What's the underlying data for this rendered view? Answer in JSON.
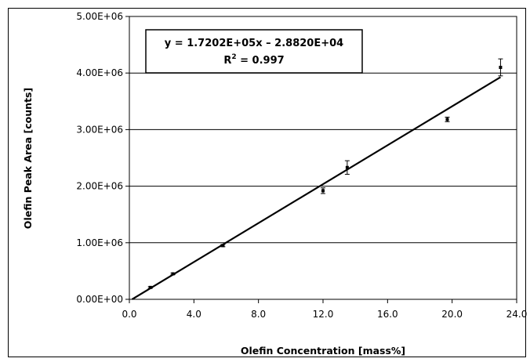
{
  "chart_data": {
    "type": "scatter",
    "xlabel": "Olefin Concentration [mass%]",
    "ylabel": "Olefin Peak Area [counts]",
    "xlim": [
      0,
      24
    ],
    "ylim": [
      0,
      5000000
    ],
    "x_ticks": [
      "0.0",
      "4.0",
      "8.0",
      "12.0",
      "16.0",
      "20.0",
      "24.0"
    ],
    "y_ticks": [
      "0.00E+00",
      "1.00E+06",
      "2.00E+06",
      "3.00E+06",
      "4.00E+06",
      "5.00E+06"
    ],
    "grid": "horizontal",
    "points": [
      {
        "x": 1.3,
        "y": 210000,
        "err": 15000
      },
      {
        "x": 2.7,
        "y": 450000,
        "err": 15000
      },
      {
        "x": 5.8,
        "y": 950000,
        "err": 20000
      },
      {
        "x": 12.0,
        "y": 1920000,
        "err": 50000
      },
      {
        "x": 13.5,
        "y": 2330000,
        "err": 120000
      },
      {
        "x": 19.7,
        "y": 3180000,
        "err": 40000
      },
      {
        "x": 23.0,
        "y": 4100000,
        "err": 150000
      }
    ],
    "trendline": {
      "slope": 172020,
      "intercept": -28820,
      "x_range": [
        0.17,
        23.0
      ],
      "equation_line1": "y = 1.7202E+05x – 2.8820E+04",
      "r2_label": "R",
      "r2_superscript": "2",
      "r2_value": " = 0.997"
    }
  }
}
